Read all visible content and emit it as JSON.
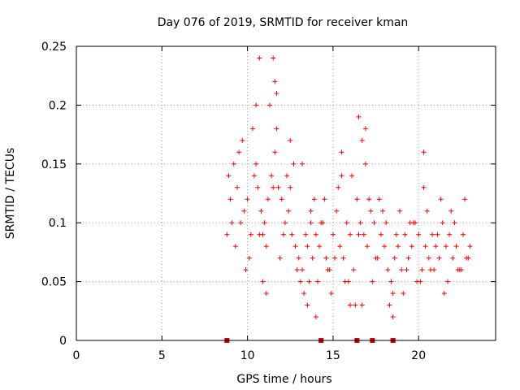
{
  "chart_data": {
    "type": "scatter",
    "title": "Day 076 of 2019, SRMTID for receiver kman",
    "xlabel": "GPS time / hours",
    "ylabel": "SRMTID / TECUs",
    "xlim": [
      0,
      24.5
    ],
    "ylim": [
      0,
      0.25
    ],
    "grid": true,
    "x_ticks": [
      "0",
      "5",
      "10",
      "15",
      "20"
    ],
    "x_tick_values": [
      0,
      5,
      10,
      15,
      20
    ],
    "y_ticks": [
      "0",
      "0.05",
      "0.1",
      "0.15",
      "0.2",
      "0.25"
    ],
    "y_tick_values": [
      0,
      0.05,
      0.1,
      0.15,
      0.2,
      0.25
    ],
    "marker": "+",
    "color": "#ff0000",
    "zero_markers_x": [
      8.8,
      14.3,
      16.4,
      17.3,
      18.5
    ],
    "zero_marker_color": "#cc0000",
    "series": [
      {
        "name": "SRMTID",
        "x": [
          8.8,
          9.0,
          9.2,
          9.4,
          9.6,
          9.8,
          10.0,
          10.2,
          10.4,
          10.6,
          10.8,
          11.0,
          11.2,
          11.4,
          11.5,
          11.6,
          11.8,
          12.0,
          12.2,
          12.4,
          12.6,
          12.8,
          13.0,
          13.2,
          13.4,
          13.5,
          13.6,
          13.8,
          14.0,
          14.2,
          14.4,
          14.6,
          14.8,
          15.0,
          15.2,
          15.4,
          15.6,
          15.8,
          16.0,
          16.2,
          16.4,
          16.6,
          16.8,
          17.0,
          17.2,
          17.4,
          17.6,
          17.8,
          18.0,
          18.2,
          18.4,
          18.6,
          18.8,
          19.0,
          19.2,
          19.4,
          19.6,
          19.8,
          20.0,
          20.2,
          20.4,
          20.6,
          20.8,
          21.0,
          21.2,
          21.4,
          21.6,
          21.8,
          22.0,
          22.2,
          22.4,
          22.6,
          22.8,
          23.0,
          8.9,
          9.3,
          9.7,
          10.1,
          10.5,
          10.9,
          11.3,
          11.7,
          12.1,
          12.5,
          12.9,
          13.3,
          13.7,
          14.1,
          14.5,
          14.9,
          15.3,
          15.7,
          16.1,
          16.5,
          16.9,
          17.3,
          17.7,
          18.1,
          18.5,
          18.9,
          19.3,
          19.7,
          20.1,
          20.5,
          20.9,
          21.3,
          21.7,
          22.1,
          22.5,
          22.9,
          9.1,
          9.5,
          9.9,
          10.3,
          10.7,
          11.1,
          11.9,
          12.3,
          12.7,
          13.1,
          13.9,
          14.3,
          14.7,
          15.1,
          15.5,
          15.9,
          16.3,
          16.7,
          17.1,
          17.5,
          17.9,
          18.3,
          18.7,
          19.1,
          19.5,
          19.9,
          20.3,
          20.7,
          21.1,
          21.5,
          21.9,
          22.3,
          22.7,
          10.5,
          10.7,
          11.5,
          11.6,
          11.7,
          12.5,
          13.5,
          14.0,
          15.5,
          16.0,
          16.5,
          16.9,
          20.3,
          10.9,
          11.1,
          13.7,
          16.7,
          18.5,
          13.2
        ],
        "y": [
          0.09,
          0.12,
          0.15,
          0.13,
          0.1,
          0.11,
          0.12,
          0.09,
          0.14,
          0.13,
          0.11,
          0.1,
          0.12,
          0.14,
          0.13,
          0.16,
          0.13,
          0.12,
          0.1,
          0.11,
          0.09,
          0.08,
          0.07,
          0.06,
          0.09,
          0.08,
          0.05,
          0.07,
          0.09,
          0.08,
          0.1,
          0.07,
          0.06,
          0.09,
          0.11,
          0.08,
          0.07,
          0.1,
          0.09,
          0.06,
          0.12,
          0.1,
          0.09,
          0.08,
          0.11,
          0.1,
          0.07,
          0.09,
          0.08,
          0.06,
          0.05,
          0.07,
          0.08,
          0.06,
          0.09,
          0.07,
          0.08,
          0.1,
          0.09,
          0.06,
          0.08,
          0.07,
          0.09,
          0.08,
          0.07,
          0.1,
          0.08,
          0.09,
          0.07,
          0.08,
          0.06,
          0.09,
          0.07,
          0.08,
          0.14,
          0.08,
          0.17,
          0.07,
          0.15,
          0.09,
          0.2,
          0.18,
          0.09,
          0.13,
          0.06,
          0.04,
          0.11,
          0.05,
          0.12,
          0.04,
          0.13,
          0.05,
          0.14,
          0.09,
          0.15,
          0.05,
          0.12,
          0.1,
          0.04,
          0.11,
          0.06,
          0.1,
          0.05,
          0.11,
          0.06,
          0.12,
          0.05,
          0.1,
          0.06,
          0.07,
          0.1,
          0.16,
          0.06,
          0.18,
          0.09,
          0.08,
          0.07,
          0.14,
          0.15,
          0.05,
          0.12,
          0.1,
          0.06,
          0.07,
          0.14,
          0.05,
          0.03,
          0.17,
          0.12,
          0.07,
          0.11,
          0.03,
          0.09,
          0.04,
          0.1,
          0.05,
          0.13,
          0.06,
          0.09,
          0.04,
          0.11,
          0.06,
          0.12,
          0.2,
          0.24,
          0.24,
          0.22,
          0.21,
          0.17,
          0.03,
          0.02,
          0.16,
          0.03,
          0.19,
          0.18,
          0.16,
          0.05,
          0.04,
          0.1,
          0.03,
          0.02,
          0.15
        ]
      }
    ]
  }
}
